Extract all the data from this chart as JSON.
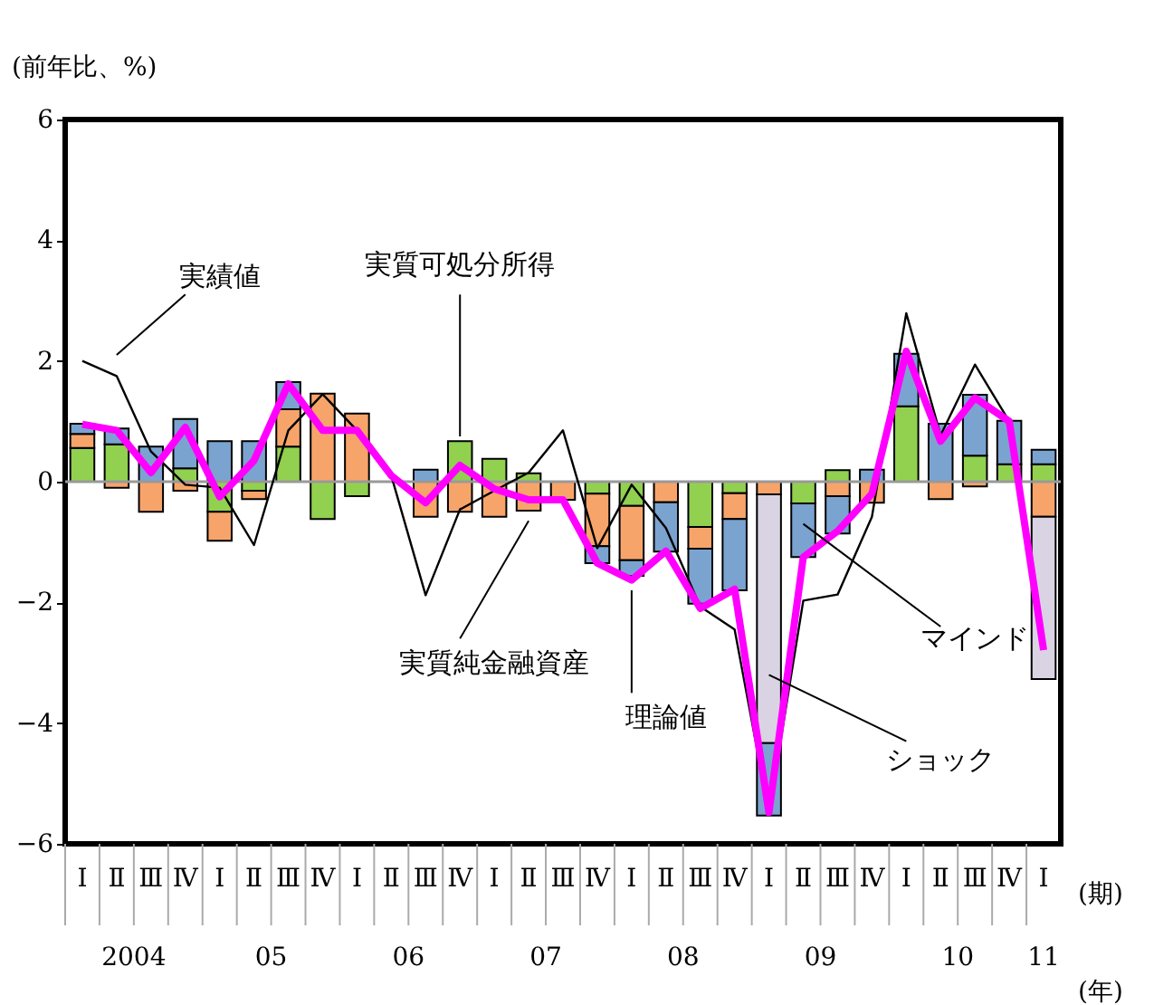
{
  "chart_data": {
    "type": "bar",
    "stacked": true,
    "ylabel": "(前年比、%)",
    "categories": [
      "Ⅰ",
      "Ⅱ",
      "Ⅲ",
      "Ⅳ",
      "Ⅰ",
      "Ⅱ",
      "Ⅲ",
      "Ⅳ",
      "Ⅰ",
      "Ⅱ",
      "Ⅲ",
      "Ⅳ",
      "Ⅰ",
      "Ⅱ",
      "Ⅲ",
      "Ⅳ",
      "Ⅰ",
      "Ⅱ",
      "Ⅲ",
      "Ⅳ",
      "Ⅰ",
      "Ⅱ",
      "Ⅲ",
      "Ⅳ",
      "Ⅰ",
      "Ⅱ",
      "Ⅲ",
      "Ⅳ",
      "Ⅰ"
    ],
    "series": [
      {
        "name": "実質可処分所得",
        "color": "#92d050",
        "values": [
          0.56,
          0.62,
          null,
          0.22,
          -0.5,
          -0.15,
          0.58,
          -0.62,
          -0.24,
          null,
          null,
          0.67,
          0.38,
          0.14,
          null,
          -0.2,
          -0.4,
          null,
          -0.75,
          -0.19,
          null,
          -0.36,
          0.19,
          null,
          1.25,
          null,
          0.43,
          0.29,
          0.29
        ]
      },
      {
        "name": "実質純金融資産",
        "color": "#f7a46b",
        "values": [
          0.23,
          -0.1,
          -0.5,
          -0.15,
          -0.48,
          -0.14,
          0.62,
          1.46,
          1.13,
          null,
          -0.58,
          -0.5,
          -0.58,
          -0.48,
          -0.3,
          -0.87,
          -0.9,
          -0.34,
          -0.36,
          -0.43,
          -0.21,
          null,
          -0.24,
          -0.35,
          null,
          -0.29,
          -0.08,
          null,
          -0.58
        ]
      },
      {
        "name": "ショック",
        "color": "#d9d3e3",
        "values": [
          null,
          null,
          null,
          null,
          null,
          null,
          null,
          null,
          null,
          null,
          null,
          null,
          null,
          null,
          null,
          null,
          null,
          null,
          null,
          null,
          -4.12,
          null,
          null,
          null,
          null,
          null,
          null,
          null,
          -2.69
        ]
      },
      {
        "name": "マインド",
        "color": "#7ba3d0",
        "values": [
          0.17,
          0.26,
          0.58,
          0.82,
          0.67,
          0.67,
          0.45,
          null,
          null,
          null,
          0.2,
          null,
          null,
          null,
          null,
          -0.28,
          -0.26,
          -0.82,
          -0.91,
          -1.18,
          -1.2,
          -0.89,
          -0.62,
          0.2,
          0.87,
          0.96,
          1.01,
          0.72,
          0.24
        ]
      },
      {
        "name": "実績値",
        "type": "line",
        "color": "#000000",
        "values": [
          2.0,
          1.75,
          0.5,
          -0.05,
          -0.1,
          -1.05,
          0.85,
          1.45,
          0.85,
          0.1,
          -1.88,
          -0.46,
          -0.15,
          0.15,
          0.85,
          -1.1,
          -0.05,
          -0.77,
          -2.07,
          -2.45,
          -5.48,
          -1.97,
          -1.87,
          -0.58,
          2.79,
          0.77,
          1.94,
          1.0,
          null
        ]
      },
      {
        "name": "理論値",
        "type": "line",
        "color": "#ff00ff",
        "values": [
          0.95,
          0.85,
          0.15,
          0.9,
          -0.25,
          0.35,
          1.62,
          0.85,
          0.85,
          0.1,
          -0.35,
          0.27,
          -0.12,
          -0.3,
          -0.3,
          -1.35,
          -1.63,
          -1.15,
          -2.1,
          -1.78,
          -5.48,
          -1.25,
          -0.82,
          -0.2,
          2.16,
          0.67,
          1.39,
          1.0,
          -2.79
        ]
      }
    ],
    "ylim": [
      -6,
      6
    ],
    "yticks": [
      -6,
      -4,
      -2,
      0,
      2,
      4,
      6
    ],
    "grid": false,
    "legend": false,
    "ref_lines": [
      {
        "axis": "y",
        "value": 0,
        "color": "#999999"
      }
    ],
    "annotations": [
      "2004",
      "05",
      "06",
      "07",
      "08",
      "09",
      "10",
      "11",
      "(期)",
      "(年)"
    ]
  }
}
